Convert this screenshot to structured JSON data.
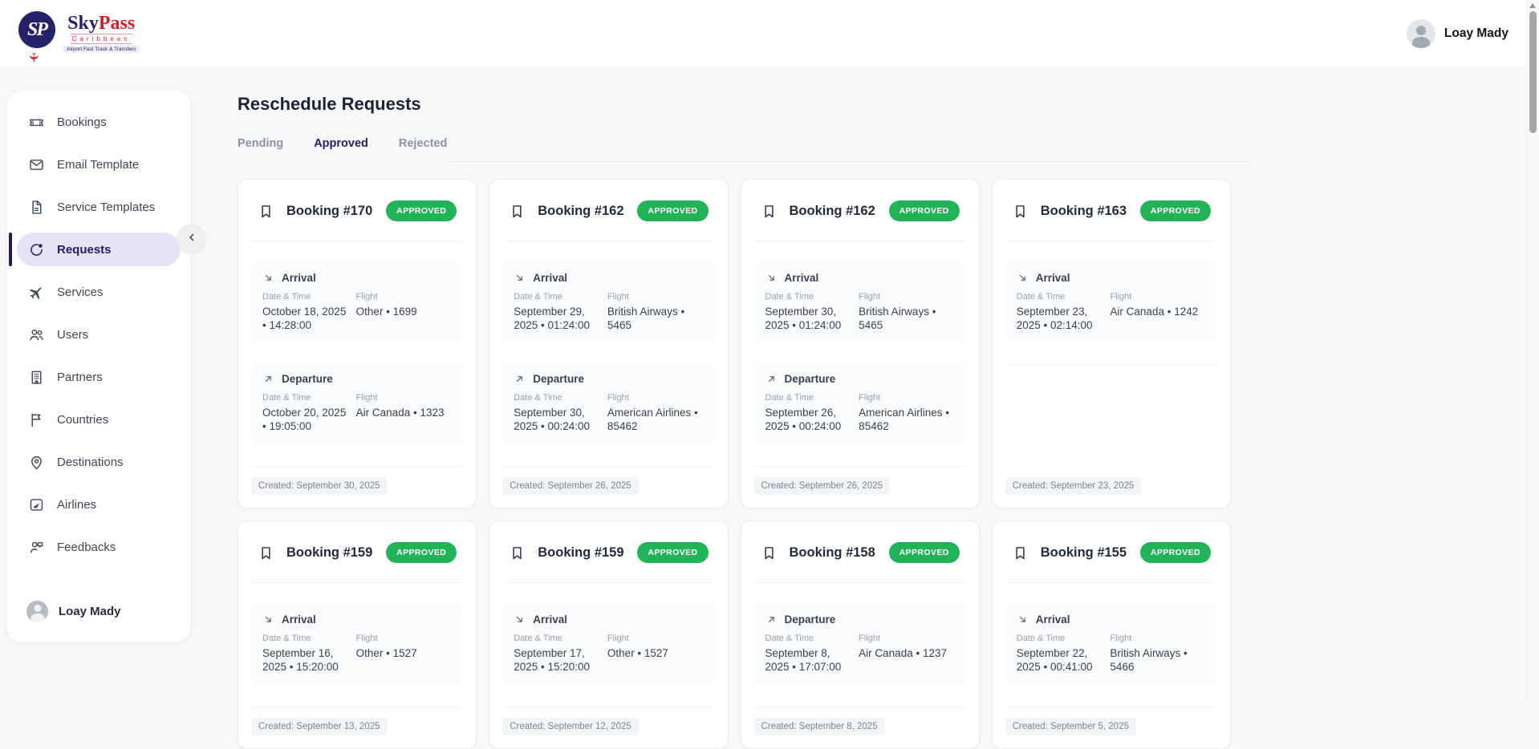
{
  "header": {
    "logo": {
      "monogram": "SP",
      "word_primary": "Sky",
      "word_secondary": "Pass",
      "region": "Caribbean",
      "tagline": "Airport Fast Track & Transfers"
    },
    "user_name": "Loay Mady"
  },
  "sidebar": {
    "items": [
      {
        "label": "Bookings",
        "icon": "ticket-icon",
        "active": false
      },
      {
        "label": "Email Template",
        "icon": "mail-icon",
        "active": false
      },
      {
        "label": "Service Templates",
        "icon": "document-icon",
        "active": false
      },
      {
        "label": "Requests",
        "icon": "request-refresh-icon",
        "active": true
      },
      {
        "label": "Services",
        "icon": "airplane-icon",
        "active": false
      },
      {
        "label": "Users",
        "icon": "users-icon",
        "active": false
      },
      {
        "label": "Partners",
        "icon": "building-icon",
        "active": false
      },
      {
        "label": "Countries",
        "icon": "flag-icon",
        "active": false
      },
      {
        "label": "Destinations",
        "icon": "map-pin-icon",
        "active": false
      },
      {
        "label": "Airlines",
        "icon": "airline-square-icon",
        "active": false
      },
      {
        "label": "Feedbacks",
        "icon": "feedback-icon",
        "active": false
      }
    ],
    "profile_name": "Loay Mady"
  },
  "page": {
    "title": "Reschedule Requests",
    "tabs": [
      {
        "label": "Pending",
        "active": false
      },
      {
        "label": "Approved",
        "active": true
      },
      {
        "label": "Rejected",
        "active": false
      }
    ]
  },
  "cards": [
    {
      "title": "Booking #170",
      "status": "APPROVED",
      "created": "Created: September 30, 2025",
      "sections": [
        {
          "type": "arrival",
          "label": "Arrival",
          "datetime_label": "Date & Time",
          "datetime": "October 18, 2025 • 14:28:00",
          "flight_label": "Flight",
          "flight": "Other • 1699"
        },
        {
          "type": "departure",
          "label": "Departure",
          "datetime_label": "Date & Time",
          "datetime": "October 20, 2025 • 19:05:00",
          "flight_label": "Flight",
          "flight": "Air Canada • 1323"
        }
      ]
    },
    {
      "title": "Booking #162",
      "status": "APPROVED",
      "created": "Created: September 26, 2025",
      "sections": [
        {
          "type": "arrival",
          "label": "Arrival",
          "datetime_label": "Date & Time",
          "datetime": "September 29, 2025 • 01:24:00",
          "flight_label": "Flight",
          "flight": "British Airways • 5465"
        },
        {
          "type": "departure",
          "label": "Departure",
          "datetime_label": "Date & Time",
          "datetime": "September 30, 2025 • 00:24:00",
          "flight_label": "Flight",
          "flight": "American Airlines • 85462"
        }
      ]
    },
    {
      "title": "Booking #162",
      "status": "APPROVED",
      "created": "Created: September 26, 2025",
      "sections": [
        {
          "type": "arrival",
          "label": "Arrival",
          "datetime_label": "Date & Time",
          "datetime": "September 30, 2025 • 01:24:00",
          "flight_label": "Flight",
          "flight": "British Airways • 5465"
        },
        {
          "type": "departure",
          "label": "Departure",
          "datetime_label": "Date & Time",
          "datetime": "September 26, 2025 • 00:24:00",
          "flight_label": "Flight",
          "flight": "American Airlines • 85462"
        }
      ]
    },
    {
      "title": "Booking #163",
      "status": "APPROVED",
      "created": "Created: September 23, 2025",
      "sections": [
        {
          "type": "arrival",
          "label": "Arrival",
          "datetime_label": "Date & Time",
          "datetime": "September 23, 2025 • 02:14:00",
          "flight_label": "Flight",
          "flight": "Air Canada • 1242"
        }
      ]
    },
    {
      "title": "Booking #159",
      "status": "APPROVED",
      "created": "Created: September 13, 2025",
      "sections": [
        {
          "type": "arrival",
          "label": "Arrival",
          "datetime_label": "Date & Time",
          "datetime": "September 16, 2025 • 15:20:00",
          "flight_label": "Flight",
          "flight": "Other • 1527"
        }
      ]
    },
    {
      "title": "Booking #159",
      "status": "APPROVED",
      "created": "Created: September 12, 2025",
      "sections": [
        {
          "type": "arrival",
          "label": "Arrival",
          "datetime_label": "Date & Time",
          "datetime": "September 17, 2025 • 15:20:00",
          "flight_label": "Flight",
          "flight": "Other • 1527"
        }
      ]
    },
    {
      "title": "Booking #158",
      "status": "APPROVED",
      "created": "Created: September 8, 2025",
      "sections": [
        {
          "type": "departure",
          "label": "Departure",
          "datetime_label": "Date & Time",
          "datetime": "September 8, 2025 • 17:07:00",
          "flight_label": "Flight",
          "flight": "Air Canada • 1237"
        }
      ]
    },
    {
      "title": "Booking #155",
      "status": "APPROVED",
      "created": "Created: September 5, 2025",
      "sections": [
        {
          "type": "arrival",
          "label": "Arrival",
          "datetime_label": "Date & Time",
          "datetime": "September 22, 2025 • 00:41:00",
          "flight_label": "Flight",
          "flight": "British Airways • 5466"
        }
      ]
    }
  ],
  "colors": {
    "brand_navy": "#262268",
    "brand_red": "#d12026",
    "accent_indigo": "#221c63",
    "active_item_bg": "#e7e3f6",
    "status_approved": "#22b358",
    "page_bg": "#f7f8fa",
    "card_border": "#ebedf0"
  }
}
